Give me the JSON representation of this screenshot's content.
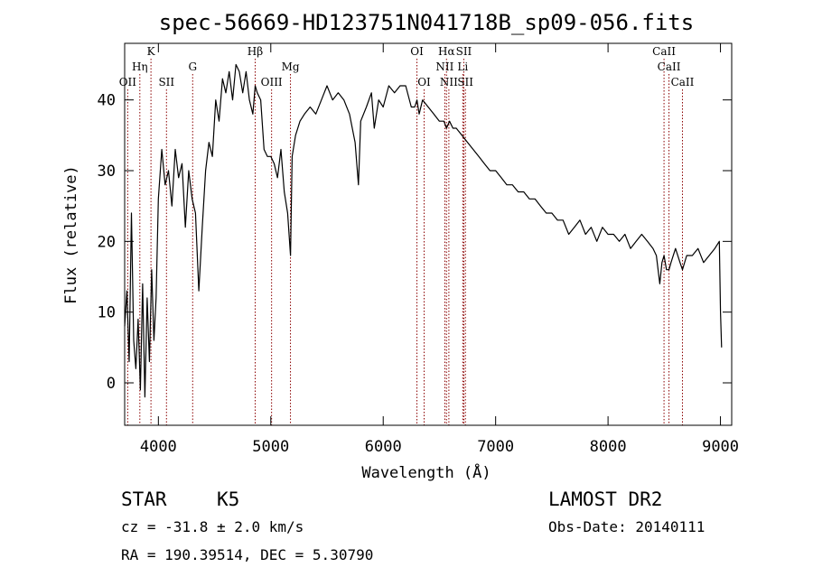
{
  "chart_data": {
    "type": "line",
    "title": "spec-56669-HD123751N041718B_sp09-056.fits",
    "xlabel": "Wavelength (Å)",
    "ylabel": "Flux (relative)",
    "xlim": [
      3700,
      9100
    ],
    "ylim": [
      -6,
      48
    ],
    "x_ticks": [
      4000,
      5000,
      6000,
      7000,
      8000,
      9000
    ],
    "y_ticks": [
      0,
      10,
      20,
      30,
      40
    ],
    "grid": false,
    "line_color": "#000000",
    "marker_color": "#8b0000",
    "spectral_lines": [
      {
        "name": "OII",
        "wavelength": 3727,
        "label_row": 3
      },
      {
        "name": "Hη",
        "wavelength": 3835,
        "label_row": 2
      },
      {
        "name": "K",
        "wavelength": 3934,
        "label_row": 1
      },
      {
        "name": "SII",
        "wavelength": 4072,
        "label_row": 3
      },
      {
        "name": "G",
        "wavelength": 4305,
        "label_row": 2
      },
      {
        "name": "Hβ",
        "wavelength": 4861,
        "label_row": 1
      },
      {
        "name": "OIII",
        "wavelength": 5007,
        "label_row": 3
      },
      {
        "name": "Mg",
        "wavelength": 5175,
        "label_row": 2
      },
      {
        "name": "OI",
        "wavelength": 6300,
        "label_row": 1
      },
      {
        "name": "OI",
        "wavelength": 6364,
        "label_row": 3
      },
      {
        "name": "Hα",
        "wavelength": 6563,
        "label_row": 1
      },
      {
        "name": "NII",
        "wavelength": 6548,
        "label_row": 2
      },
      {
        "name": "NII",
        "wavelength": 6584,
        "label_row": 3
      },
      {
        "name": "SII",
        "wavelength": 6717,
        "label_row": 1
      },
      {
        "name": "Li",
        "wavelength": 6708,
        "label_row": 2
      },
      {
        "name": "SII",
        "wavelength": 6731,
        "label_row": 3
      },
      {
        "name": "CaII",
        "wavelength": 8498,
        "label_row": 1
      },
      {
        "name": "CaII",
        "wavelength": 8542,
        "label_row": 2
      },
      {
        "name": "CaII",
        "wavelength": 8662,
        "label_row": 3
      }
    ],
    "series": [
      {
        "x": [
          3700,
          3720,
          3740,
          3760,
          3780,
          3800,
          3820,
          3840,
          3860,
          3880,
          3900,
          3920,
          3940,
          3960,
          3980,
          4000,
          4030,
          4060,
          4090,
          4120,
          4150,
          4180,
          4210,
          4240,
          4270,
          4300,
          4330,
          4360,
          4390,
          4420,
          4450,
          4480,
          4510,
          4540,
          4570,
          4600,
          4630,
          4660,
          4690,
          4720,
          4750,
          4780,
          4810,
          4840,
          4861,
          4880,
          4910,
          4940,
          4970,
          5000,
          5030,
          5060,
          5090,
          5120,
          5150,
          5175,
          5190,
          5220,
          5260,
          5300,
          5350,
          5400,
          5450,
          5500,
          5550,
          5600,
          5650,
          5700,
          5750,
          5780,
          5800,
          5850,
          5895,
          5920,
          5960,
          6000,
          6050,
          6100,
          6150,
          6200,
          6250,
          6280,
          6300,
          6320,
          6350,
          6400,
          6450,
          6500,
          6540,
          6563,
          6590,
          6620,
          6650,
          6700,
          6750,
          6800,
          6850,
          6900,
          6950,
          7000,
          7050,
          7100,
          7150,
          7200,
          7250,
          7300,
          7350,
          7400,
          7450,
          7500,
          7550,
          7600,
          7650,
          7700,
          7750,
          7800,
          7850,
          7900,
          7950,
          8000,
          8050,
          8100,
          8150,
          8200,
          8250,
          8300,
          8350,
          8400,
          8430,
          8460,
          8480,
          8498,
          8520,
          8542,
          8560,
          8600,
          8640,
          8662,
          8700,
          8750,
          8800,
          8850,
          8900,
          8950,
          8990,
          9000,
          9010
        ],
        "y": [
          8,
          13,
          3,
          24,
          6,
          2,
          9,
          -1,
          14,
          -2,
          12,
          3,
          16,
          6,
          12,
          26,
          33,
          28,
          30,
          25,
          33,
          29,
          31,
          22,
          30,
          26,
          24,
          13,
          22,
          30,
          34,
          32,
          40,
          37,
          43,
          41,
          44,
          40,
          45,
          44,
          41,
          44,
          40,
          38,
          42,
          41,
          40,
          33,
          32,
          32,
          31,
          29,
          33,
          27,
          24,
          18,
          32,
          35,
          37,
          38,
          39,
          38,
          40,
          42,
          40,
          41,
          40,
          38,
          34,
          28,
          37,
          39,
          41,
          36,
          40,
          39,
          42,
          41,
          42,
          42,
          39,
          39,
          40,
          38,
          40,
          39,
          38,
          37,
          37,
          36,
          37,
          36,
          36,
          35,
          34,
          33,
          32,
          31,
          30,
          30,
          29,
          28,
          28,
          27,
          27,
          26,
          26,
          25,
          24,
          24,
          23,
          23,
          21,
          22,
          23,
          21,
          22,
          20,
          22,
          21,
          21,
          20,
          21,
          19,
          20,
          21,
          20,
          19,
          18,
          14,
          17,
          18,
          16,
          16,
          17,
          19,
          17,
          16,
          18,
          18,
          19,
          17,
          18,
          19,
          20,
          10,
          5
        ]
      }
    ]
  },
  "info": {
    "object_class": "STAR",
    "subclass": "K5",
    "survey": "LAMOST DR2",
    "velocity": "cz = -31.8 ± 2.0 km/s",
    "obs_date": "Obs-Date: 20140111",
    "coords": "RA = 190.39514, DEC =   5.30790"
  }
}
